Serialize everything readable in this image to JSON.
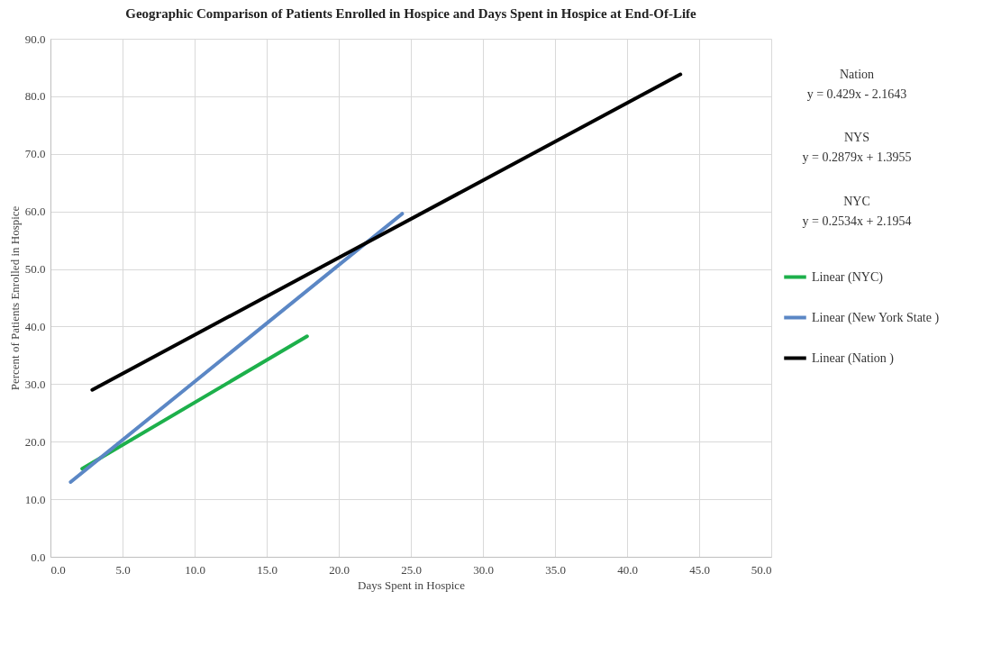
{
  "chart_data": {
    "type": "line",
    "title": "Geographic Comparison of Patients Enrolled in Hospice and Days Spent in Hospice at End-Of-Life",
    "xlabel": "Days Spent in Hospice",
    "ylabel": "Percent of Patients Enrolled in Hospice",
    "series": [
      {
        "name": "Linear (NYC)",
        "color": "#1db04b",
        "x": [
          2.2,
          17.8
        ],
        "values": [
          15.3,
          38.3
        ]
      },
      {
        "name": "Linear (New York State )",
        "color": "#5b87c5",
        "x": [
          1.4,
          24.4
        ],
        "values": [
          13.0,
          59.6
        ]
      },
      {
        "name": "Linear (Nation )",
        "color": "#000000",
        "x": [
          2.9,
          43.7
        ],
        "values": [
          29.0,
          83.8
        ]
      }
    ],
    "xlim": [
      0,
      50
    ],
    "ylim": [
      0,
      90
    ],
    "xticks": [
      {
        "value": 0,
        "label": "0.0"
      },
      {
        "value": 5,
        "label": "5.0"
      },
      {
        "value": 10,
        "label": "10.0"
      },
      {
        "value": 15,
        "label": "15.0"
      },
      {
        "value": 20,
        "label": "20.0"
      },
      {
        "value": 25,
        "label": "25.0"
      },
      {
        "value": 30,
        "label": "30.0"
      },
      {
        "value": 35,
        "label": "35.0"
      },
      {
        "value": 40,
        "label": "40.0"
      },
      {
        "value": 45,
        "label": "45.0"
      },
      {
        "value": 50,
        "label": "50.0"
      }
    ],
    "yticks": [
      {
        "value": 0,
        "label": "0.0"
      },
      {
        "value": 10,
        "label": "10.0"
      },
      {
        "value": 20,
        "label": "20.0"
      },
      {
        "value": 30,
        "label": "30.0"
      },
      {
        "value": 40,
        "label": "40.0"
      },
      {
        "value": 50,
        "label": "50.0"
      },
      {
        "value": 60,
        "label": "60.0"
      },
      {
        "value": 70,
        "label": "70.0"
      },
      {
        "value": 80,
        "label": "80.0"
      },
      {
        "value": 90,
        "label": "90.0"
      }
    ],
    "annotations": [
      "Nation",
      "y = 0.429x - 2.1643",
      "NYS",
      "y = 0.2879x + 1.3955",
      "NYC",
      "y = 0.2534x + 2.1954"
    ],
    "grid": true,
    "legend": "right",
    "marker": "none",
    "line_style": "solid"
  }
}
